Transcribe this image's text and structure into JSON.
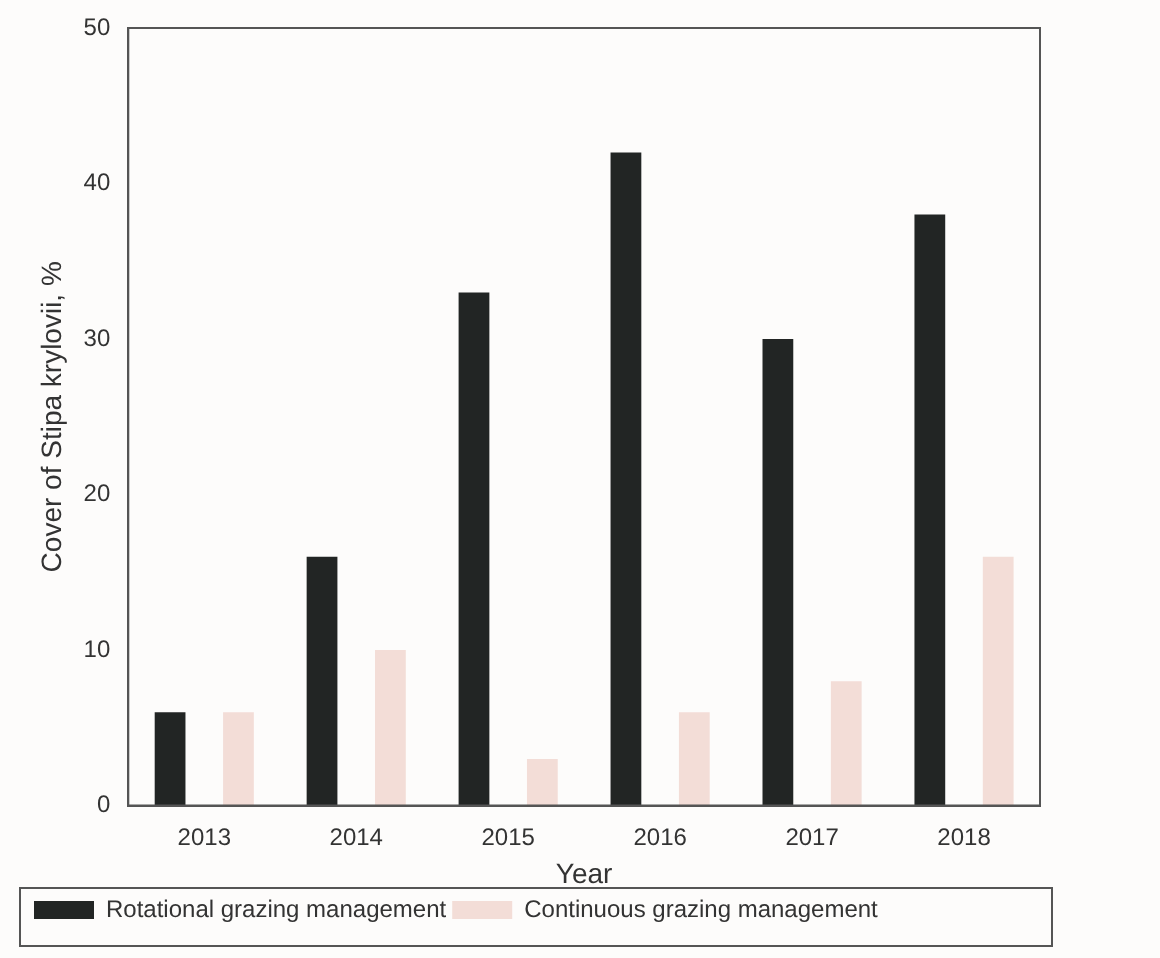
{
  "chart_data": {
    "type": "bar",
    "xlabel": "Year",
    "ylabel": "Cover of Stipa krylovii, %",
    "categories": [
      "2013",
      "2014",
      "2015",
      "2016",
      "2017",
      "2018"
    ],
    "series": [
      {
        "name": "Rotational grazing management",
        "color": "#222524",
        "values": [
          6,
          16,
          33,
          42,
          30,
          38
        ]
      },
      {
        "name": "Continuous grazing management",
        "color": "#f3ddd7",
        "values": [
          6,
          10,
          3,
          6,
          8,
          16
        ]
      }
    ],
    "ylim": [
      0,
      50
    ],
    "yticks": [
      0,
      10,
      20,
      30,
      40,
      50
    ],
    "grid": false,
    "legend": "bottom left"
  }
}
